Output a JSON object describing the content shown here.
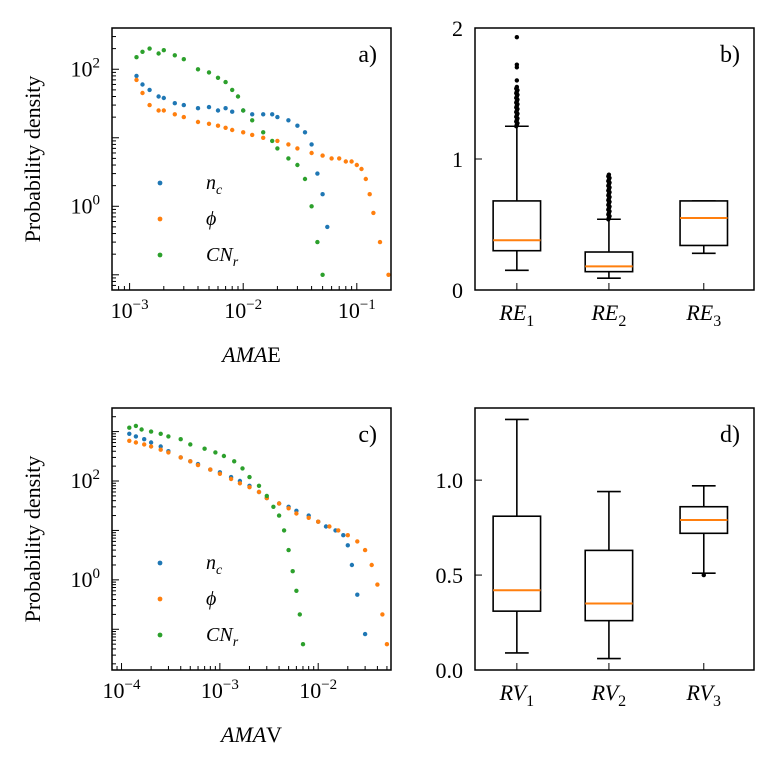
{
  "colors": {
    "n_c": "#1f77b4",
    "phi": "#ff7f0e",
    "CN_r": "#2ca02c",
    "median": "#ff7f0e",
    "box": "#000000"
  },
  "chart_data": [
    {
      "id": "a",
      "panel_label": "a)",
      "type": "scatter",
      "xlabel_main": "AMA",
      "xlabel_suffix": "E",
      "ylabel": "Probability density",
      "xscale": "log",
      "yscale": "log",
      "xlim": [
        0.0007,
        0.2
      ],
      "ylim": [
        0.06,
        400
      ],
      "xticks": [
        {
          "v": 0.001,
          "base": "10",
          "exp": "−3"
        },
        {
          "v": 0.01,
          "base": "10",
          "exp": "−2"
        },
        {
          "v": 0.1,
          "base": "10",
          "exp": "−1"
        }
      ],
      "yticks": [
        {
          "v": 1,
          "base": "10",
          "exp": "0"
        },
        {
          "v": 100,
          "base": "10",
          "exp": "2"
        }
      ],
      "legend": {
        "position": "lower-left",
        "entries": [
          {
            "key": "n_c",
            "label": "n",
            "sub": "c"
          },
          {
            "key": "phi",
            "label": "ϕ",
            "sub": ""
          },
          {
            "key": "CN_r",
            "label": "CN",
            "sub": "r"
          }
        ]
      },
      "series": [
        {
          "key": "n_c",
          "points": [
            [
              0.00115,
              80
            ],
            [
              0.0013,
              60
            ],
            [
              0.0015,
              50
            ],
            [
              0.0018,
              40
            ],
            [
              0.002,
              38
            ],
            [
              0.0025,
              32
            ],
            [
              0.003,
              30
            ],
            [
              0.004,
              27
            ],
            [
              0.005,
              28
            ],
            [
              0.006,
              25
            ],
            [
              0.007,
              27
            ],
            [
              0.008,
              24
            ],
            [
              0.01,
              25
            ],
            [
              0.012,
              22
            ],
            [
              0.015,
              22
            ],
            [
              0.018,
              22
            ],
            [
              0.02,
              20
            ],
            [
              0.025,
              18
            ],
            [
              0.03,
              15
            ],
            [
              0.035,
              12
            ],
            [
              0.04,
              8
            ],
            [
              0.045,
              3
            ],
            [
              0.05,
              1.5
            ],
            [
              0.055,
              0.5
            ]
          ]
        },
        {
          "key": "phi",
          "points": [
            [
              0.00115,
              70
            ],
            [
              0.0013,
              45
            ],
            [
              0.0015,
              30
            ],
            [
              0.0018,
              25
            ],
            [
              0.002,
              25
            ],
            [
              0.0025,
              22
            ],
            [
              0.003,
              20
            ],
            [
              0.004,
              17
            ],
            [
              0.005,
              16
            ],
            [
              0.006,
              15
            ],
            [
              0.007,
              14
            ],
            [
              0.008,
              13
            ],
            [
              0.01,
              12
            ],
            [
              0.012,
              11
            ],
            [
              0.015,
              10
            ],
            [
              0.02,
              9
            ],
            [
              0.025,
              8
            ],
            [
              0.03,
              7
            ],
            [
              0.04,
              6
            ],
            [
              0.05,
              5.5
            ],
            [
              0.06,
              5
            ],
            [
              0.07,
              5
            ],
            [
              0.08,
              4.5
            ],
            [
              0.09,
              4.5
            ],
            [
              0.1,
              4
            ],
            [
              0.11,
              3.5
            ],
            [
              0.12,
              2.5
            ],
            [
              0.13,
              1.5
            ],
            [
              0.14,
              0.8
            ],
            [
              0.16,
              0.3
            ],
            [
              0.19,
              0.1
            ]
          ]
        },
        {
          "key": "CN_r",
          "points": [
            [
              0.00115,
              150
            ],
            [
              0.0013,
              180
            ],
            [
              0.0015,
              200
            ],
            [
              0.0018,
              170
            ],
            [
              0.002,
              190
            ],
            [
              0.0025,
              160
            ],
            [
              0.003,
              140
            ],
            [
              0.004,
              100
            ],
            [
              0.005,
              90
            ],
            [
              0.006,
              75
            ],
            [
              0.007,
              65
            ],
            [
              0.008,
              50
            ],
            [
              0.009,
              40
            ],
            [
              0.01,
              25
            ],
            [
              0.012,
              18
            ],
            [
              0.015,
              12
            ],
            [
              0.018,
              9
            ],
            [
              0.02,
              7
            ],
            [
              0.025,
              5
            ],
            [
              0.03,
              4
            ],
            [
              0.035,
              2.5
            ],
            [
              0.04,
              1
            ],
            [
              0.045,
              0.3
            ],
            [
              0.05,
              0.1
            ]
          ]
        }
      ]
    },
    {
      "id": "b",
      "panel_label": "b)",
      "type": "box",
      "ylim": [
        0,
        2
      ],
      "yticks": [
        0,
        1,
        2
      ],
      "categories": [
        {
          "label": "RE",
          "sub": "1"
        },
        {
          "label": "RE",
          "sub": "2"
        },
        {
          "label": "RE",
          "sub": "3"
        }
      ],
      "boxes": [
        {
          "q1": 0.3,
          "median": 0.38,
          "q3": 0.68,
          "wlo": 0.15,
          "whi": 1.25,
          "fliers_dense": [
            1.25,
            1.55
          ],
          "fliers": [
            1.6,
            1.7,
            1.72,
            1.93
          ]
        },
        {
          "q1": 0.14,
          "median": 0.18,
          "q3": 0.29,
          "wlo": 0.09,
          "whi": 0.54,
          "fliers_dense": [
            0.54,
            0.88
          ],
          "fliers": []
        },
        {
          "q1": 0.34,
          "median": 0.55,
          "q3": 0.68,
          "wlo": 0.28,
          "whi": 0.68,
          "fliers_dense": null,
          "fliers": []
        }
      ]
    },
    {
      "id": "c",
      "panel_label": "c)",
      "type": "scatter",
      "xlabel_main": "AMA",
      "xlabel_suffix": "V",
      "ylabel": "Probability density",
      "xscale": "log",
      "yscale": "log",
      "xlim": [
        8e-05,
        0.055
      ],
      "ylim": [
        0.015,
        3000
      ],
      "xticks": [
        {
          "v": 0.0001,
          "base": "10",
          "exp": "−4"
        },
        {
          "v": 0.001,
          "base": "10",
          "exp": "−3"
        },
        {
          "v": 0.01,
          "base": "10",
          "exp": "−2"
        }
      ],
      "yticks": [
        {
          "v": 1,
          "base": "10",
          "exp": "0"
        },
        {
          "v": 100,
          "base": "10",
          "exp": "2"
        }
      ],
      "legend": {
        "position": "lower-left",
        "entries": [
          {
            "key": "n_c",
            "label": "n",
            "sub": "c"
          },
          {
            "key": "phi",
            "label": "ϕ",
            "sub": ""
          },
          {
            "key": "CN_r",
            "label": "CN",
            "sub": "r"
          }
        ]
      },
      "series": [
        {
          "key": "n_c",
          "points": [
            [
              0.00012,
              900
            ],
            [
              0.00014,
              800
            ],
            [
              0.00017,
              700
            ],
            [
              0.0002,
              600
            ],
            [
              0.00025,
              500
            ],
            [
              0.0003,
              400
            ],
            [
              0.0004,
              300
            ],
            [
              0.0005,
              250
            ],
            [
              0.0006,
              220
            ],
            [
              0.0008,
              170
            ],
            [
              0.001,
              150
            ],
            [
              0.0013,
              120
            ],
            [
              0.0016,
              100
            ],
            [
              0.002,
              80
            ],
            [
              0.0025,
              60
            ],
            [
              0.003,
              45
            ],
            [
              0.004,
              35
            ],
            [
              0.005,
              30
            ],
            [
              0.006,
              25
            ],
            [
              0.008,
              20
            ],
            [
              0.01,
              15
            ],
            [
              0.012,
              12
            ],
            [
              0.015,
              10
            ],
            [
              0.018,
              8
            ],
            [
              0.02,
              5
            ],
            [
              0.022,
              2
            ],
            [
              0.025,
              0.5
            ],
            [
              0.03,
              0.08
            ]
          ]
        },
        {
          "key": "phi",
          "points": [
            [
              0.00012,
              650
            ],
            [
              0.00014,
              600
            ],
            [
              0.00017,
              550
            ],
            [
              0.0002,
              500
            ],
            [
              0.00025,
              430
            ],
            [
              0.0003,
              380
            ],
            [
              0.0004,
              300
            ],
            [
              0.0005,
              250
            ],
            [
              0.0006,
              210
            ],
            [
              0.0008,
              170
            ],
            [
              0.001,
              140
            ],
            [
              0.0013,
              110
            ],
            [
              0.0016,
              90
            ],
            [
              0.002,
              75
            ],
            [
              0.0025,
              60
            ],
            [
              0.003,
              45
            ],
            [
              0.004,
              35
            ],
            [
              0.005,
              28
            ],
            [
              0.006,
              22
            ],
            [
              0.008,
              18
            ],
            [
              0.01,
              15
            ],
            [
              0.013,
              12
            ],
            [
              0.016,
              10
            ],
            [
              0.02,
              8
            ],
            [
              0.025,
              6
            ],
            [
              0.03,
              4
            ],
            [
              0.035,
              2
            ],
            [
              0.04,
              0.8
            ],
            [
              0.045,
              0.2
            ],
            [
              0.05,
              0.05
            ]
          ]
        },
        {
          "key": "CN_r",
          "points": [
            [
              0.00012,
              1200
            ],
            [
              0.00014,
              1300
            ],
            [
              0.00016,
              1100
            ],
            [
              0.0002,
              1000
            ],
            [
              0.00025,
              900
            ],
            [
              0.0003,
              800
            ],
            [
              0.0004,
              700
            ],
            [
              0.0005,
              550
            ],
            [
              0.0007,
              450
            ],
            [
              0.0009,
              380
            ],
            [
              0.0011,
              320
            ],
            [
              0.0014,
              250
            ],
            [
              0.0017,
              180
            ],
            [
              0.002,
              120
            ],
            [
              0.0025,
              80
            ],
            [
              0.003,
              50
            ],
            [
              0.0035,
              30
            ],
            [
              0.004,
              20
            ],
            [
              0.0045,
              10
            ],
            [
              0.005,
              4
            ],
            [
              0.0055,
              1.5
            ],
            [
              0.006,
              0.6
            ],
            [
              0.0065,
              0.2
            ],
            [
              0.007,
              0.05
            ]
          ]
        }
      ]
    },
    {
      "id": "d",
      "panel_label": "d)",
      "type": "box",
      "ylim": [
        0,
        1.38
      ],
      "yticks": [
        0,
        0.5,
        1.0
      ],
      "ytick_labels": [
        "0.0",
        "0.5",
        "1.0"
      ],
      "categories": [
        {
          "label": "RV",
          "sub": "1"
        },
        {
          "label": "RV",
          "sub": "2"
        },
        {
          "label": "RV",
          "sub": "3"
        }
      ],
      "boxes": [
        {
          "q1": 0.31,
          "median": 0.42,
          "q3": 0.81,
          "wlo": 0.09,
          "whi": 1.32,
          "fliers_dense": null,
          "fliers": []
        },
        {
          "q1": 0.26,
          "median": 0.35,
          "q3": 0.63,
          "wlo": 0.06,
          "whi": 0.94,
          "fliers_dense": null,
          "fliers": []
        },
        {
          "q1": 0.72,
          "median": 0.79,
          "q3": 0.86,
          "wlo": 0.51,
          "whi": 0.97,
          "fliers_dense": null,
          "fliers": [
            0.5
          ]
        }
      ]
    }
  ]
}
